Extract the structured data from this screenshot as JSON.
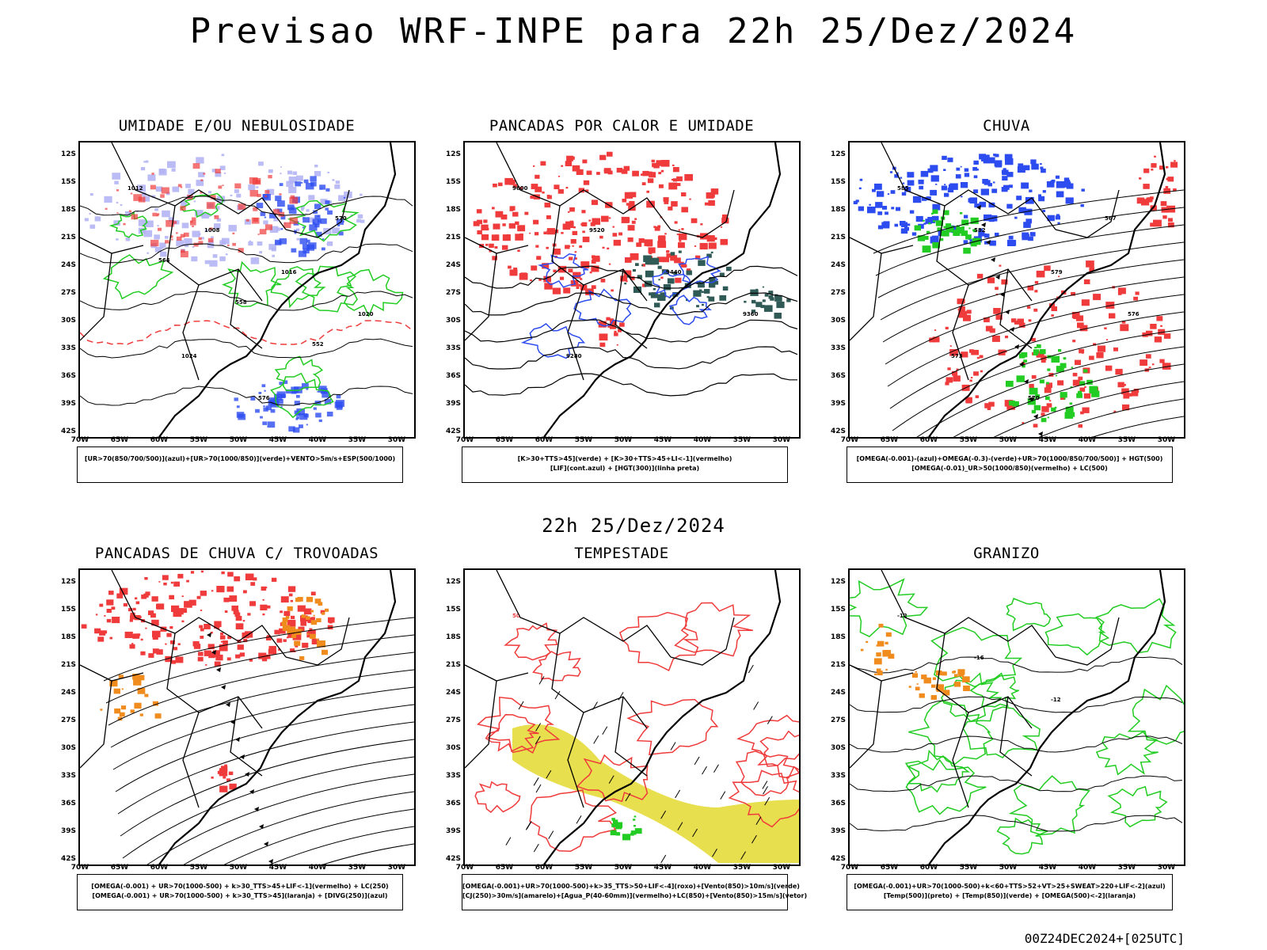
{
  "title": "Previsao WRF-INPE  para 22h 25/Dez/2024",
  "mid_title": "22h 25/Dez/2024",
  "footer": "00Z24DEC2024+[025UTC]",
  "lat_labels": [
    "12S",
    "15S",
    "18S",
    "21S",
    "24S",
    "27S",
    "30S",
    "33S",
    "36S",
    "39S",
    "42S"
  ],
  "lon_labels": [
    "70W",
    "65W",
    "60W",
    "55W",
    "50W",
    "45W",
    "40W",
    "35W",
    "30W"
  ],
  "colors": {
    "red": "#ef3b3b",
    "blue": "#2d4cf0",
    "lightblue": "#b4b4f5",
    "green": "#22cc22",
    "darkgreen": "#2f5a55",
    "yellow": "#e6dc3c",
    "orange": "#f08c1e",
    "black": "#000000"
  },
  "panels": [
    {
      "title": "UMIDADE E/OU NEBULOSIDADE",
      "caption": [
        "[UR>70(850/700/500)](azul)+[UR>70(1000/850)](verde)+VENTO>5m/s+ESP(500/1000)"
      ],
      "contour_labels": [
        "1012",
        "1008",
        "1016",
        "1020",
        "1024",
        "576",
        "570",
        "564",
        "558",
        "552"
      ]
    },
    {
      "title": "PANCADAS POR CALOR E UMIDADE",
      "caption": [
        "[K>30+TTS>45](verde) + [K>30+TTS>45+LI<-1](vermelho)",
        "[LIF](cont.azul) + [HGT(300)](linha preta)"
      ],
      "contour_labels": [
        "9600",
        "9520",
        "9440",
        "9360",
        "9280"
      ]
    },
    {
      "title": "CHUVA",
      "caption": [
        "[OMEGA(-0.001)-(azul)+OMEGA(-0.3)-(verde)+UR>70(1000/850/700/500)] + HGT(500)",
        "[OMEGA(-0.01)_UR>50(1000/850)(vermelho) + LC(500)"
      ],
      "contour_labels": [
        "585",
        "582",
        "579",
        "576",
        "573",
        "570",
        "567"
      ]
    },
    {
      "title": "PANCADAS DE CHUVA C/ TROVOADAS",
      "caption": [
        "[OMEGA(-0.001) + UR>70(1000-500) + k>30_TTS>45+LIF<-1](vermelho) + LC(250)",
        "[OMEGA(-0.001) + UR>70(1000-500) + k>30_TTS>45](laranja) + [DIVG(250)](azul)"
      ],
      "contour_labels": []
    },
    {
      "title": "TEMPESTADE",
      "caption": [
        "[OMEGA(-0.001)+UR>70(1000-500)+k>35_TTS>50+LIF<-4](roxo)+[Vento(850)>10m/s](verde)",
        "[CJ(250)>30m/s](amarelo)+[Agua_P(40-60mm)](vermelho)+LC(850)+[Vento(850)>15m/s](vetor)"
      ],
      "contour_labels": [
        "50"
      ]
    },
    {
      "title": "GRANIZO",
      "caption": [
        "[OMEGA(-0.001)+UR>70(1000-500)+k<60+TTS>52+VT>25+SWEAT>220+LIF<-2](azul)",
        "[Temp(500)](preto) + [Temp(850)](verde) + [OMEGA(500)<-2](laranja)"
      ],
      "contour_labels": [
        "-12",
        "-16",
        "-12"
      ]
    }
  ]
}
